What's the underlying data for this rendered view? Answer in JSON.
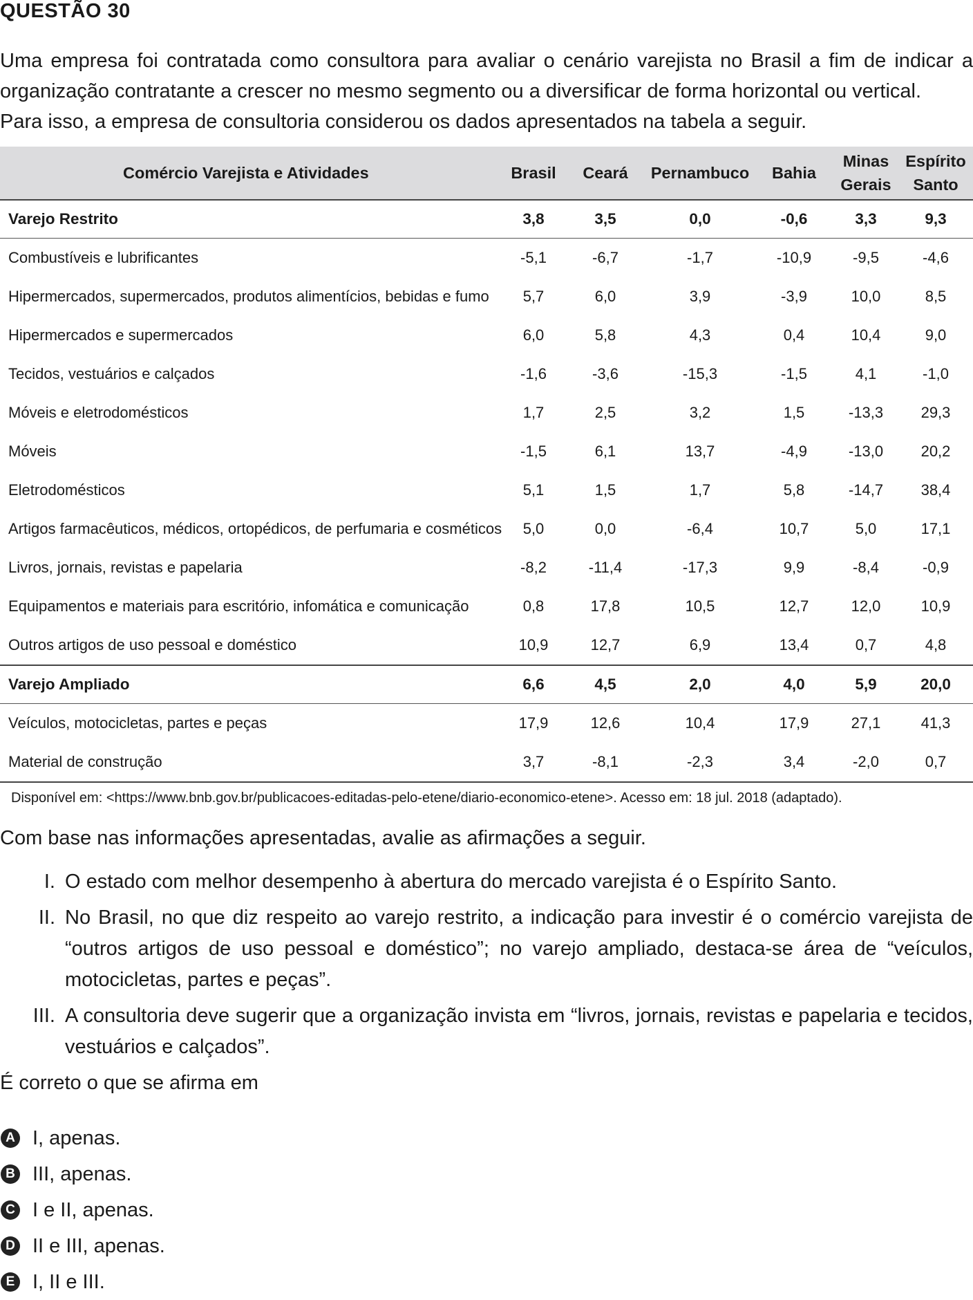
{
  "question_title": "QUESTÃO 30",
  "intro": [
    "Uma empresa foi contratada como consultora para avaliar o cenário varejista no Brasil a fim de indicar a organização contratante a crescer no mesmo segmento ou a diversificar de forma horizontal ou vertical.",
    "Para isso, a empresa de consultoria considerou os dados apresentados na tabela a seguir."
  ],
  "table": {
    "headers": [
      "Comércio Varejista e Atividades",
      "Brasil",
      "Ceará",
      "Pernambuco",
      "Bahia",
      "Minas Gerais",
      "Espírito Santo"
    ],
    "rows": [
      {
        "label": "Varejo Restrito",
        "values": [
          "3,8",
          "3,5",
          "0,0",
          "-0,6",
          "3,3",
          "9,3"
        ]
      },
      {
        "label": "Combustíveis e lubrificantes",
        "values": [
          "-5,1",
          "-6,7",
          "-1,7",
          "-10,9",
          "-9,5",
          "-4,6"
        ]
      },
      {
        "label": "Hipermercados, supermercados, produtos alimentícios, bebidas e fumo",
        "values": [
          "5,7",
          "6,0",
          "3,9",
          "-3,9",
          "10,0",
          "8,5"
        ]
      },
      {
        "label": "Hipermercados e supermercados",
        "values": [
          "6,0",
          "5,8",
          "4,3",
          "0,4",
          "10,4",
          "9,0"
        ]
      },
      {
        "label": "Tecidos, vestuários e calçados",
        "values": [
          "-1,6",
          "-3,6",
          "-15,3",
          "-1,5",
          "4,1",
          "-1,0"
        ]
      },
      {
        "label": "Móveis e eletrodomésticos",
        "values": [
          "1,7",
          "2,5",
          "3,2",
          "1,5",
          "-13,3",
          "29,3"
        ]
      },
      {
        "label": "Móveis",
        "values": [
          "-1,5",
          "6,1",
          "13,7",
          "-4,9",
          "-13,0",
          "20,2"
        ]
      },
      {
        "label": "Eletrodomésticos",
        "values": [
          "5,1",
          "1,5",
          "1,7",
          "5,8",
          "-14,7",
          "38,4"
        ]
      },
      {
        "label": "Artigos farmacêuticos, médicos, ortopédicos, de perfumaria e cosméticos",
        "values": [
          "5,0",
          "0,0",
          "-6,4",
          "10,7",
          "5,0",
          "17,1"
        ]
      },
      {
        "label": "Livros, jornais, revistas e papelaria",
        "values": [
          "-8,2",
          "-11,4",
          "-17,3",
          "9,9",
          "-8,4",
          "-0,9"
        ]
      },
      {
        "label": "Equipamentos e materiais para escritório, infomática e comunicação",
        "values": [
          "0,8",
          "17,8",
          "10,5",
          "12,7",
          "12,0",
          "10,9"
        ]
      },
      {
        "label": "Outros artigos de uso pessoal e doméstico",
        "values": [
          "10,9",
          "12,7",
          "6,9",
          "13,4",
          "0,7",
          "4,8"
        ]
      },
      {
        "label": "Varejo Ampliado",
        "values": [
          "6,6",
          "4,5",
          "2,0",
          "4,0",
          "5,9",
          "20,0"
        ]
      },
      {
        "label": "Veículos, motocicletas, partes e peças",
        "values": [
          "17,9",
          "12,6",
          "10,4",
          "17,9",
          "27,1",
          "41,3"
        ]
      },
      {
        "label": "Material de construção",
        "values": [
          "3,7",
          "-8,1",
          "-2,3",
          "3,4",
          "-2,0",
          "0,7"
        ]
      }
    ]
  },
  "source": "Disponível em: <https://www.bnb.gov.br/publicacoes-editadas-pelo-etene/diario-economico-etene>. Acesso em: 18 jul. 2018 (adaptado).",
  "lead": "Com base nas informações apresentadas, avalie as afirmações a seguir.",
  "statements": [
    {
      "num": "I.",
      "text": "O estado com melhor desempenho à abertura do mercado varejista é o Espírito Santo."
    },
    {
      "num": "II.",
      "text": "No Brasil, no que diz respeito ao varejo restrito, a indicação para investir é o comércio varejista de “outros artigos de uso pessoal e doméstico”; no varejo ampliado, destaca-se área de “veículos, motocicletas, partes e peças”."
    },
    {
      "num": "III.",
      "text": "A consultoria deve sugerir que a organização invista em “livros, jornais, revistas e papelaria e tecidos, vestuários e calçados”."
    }
  ],
  "question": "É correto o que se afirma em",
  "options": [
    {
      "letter": "A",
      "text": "I, apenas."
    },
    {
      "letter": "B",
      "text": "III, apenas."
    },
    {
      "letter": "C",
      "text": "I e II, apenas."
    },
    {
      "letter": "D",
      "text": "II e III, apenas."
    },
    {
      "letter": "E",
      "text": "I, II e III."
    }
  ]
}
